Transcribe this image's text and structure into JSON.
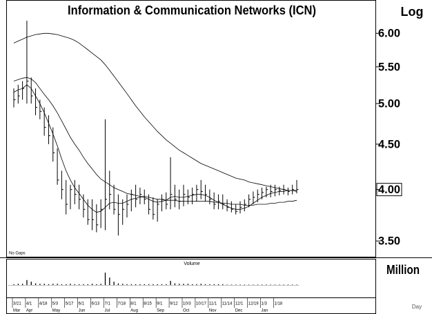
{
  "chart_data": [
    {
      "type": "ohlc",
      "title": "Information & Communication Networks (ICN)",
      "scale": "log",
      "scale_label": "Log",
      "note": "No Gaps",
      "x_label": "Day",
      "color": "#000000",
      "ylim": [
        3.36,
        6.53
      ],
      "yticks": [
        {
          "value": 3.5,
          "label": "3.50"
        },
        {
          "value": 4,
          "label": "4.00"
        },
        {
          "value": 4.5,
          "label": "4.50"
        },
        {
          "value": 5,
          "label": "5.00"
        },
        {
          "value": 5.5,
          "label": "5.50"
        },
        {
          "value": 6,
          "label": "6.00"
        }
      ],
      "categories": [
        "3/21",
        null,
        null,
        "4/1",
        null,
        null,
        "4/18",
        null,
        null,
        "5/3",
        null,
        null,
        "5/17",
        null,
        null,
        "6/1",
        null,
        null,
        "6/13",
        null,
        null,
        "7/1",
        null,
        null,
        "7/18",
        null,
        null,
        "8/1",
        null,
        null,
        "8/15",
        null,
        null,
        "9/1",
        null,
        null,
        "9/12",
        null,
        null,
        "10/3",
        null,
        null,
        "10/17",
        null,
        null,
        "11/1",
        null,
        null,
        "11/14",
        null,
        null,
        "12/1",
        null,
        null,
        "12/19",
        null,
        null,
        "1/3",
        null,
        null,
        "1/18",
        null,
        null,
        null,
        null,
        null
      ],
      "months": [
        "Mar",
        null,
        null,
        "Apr",
        null,
        null,
        null,
        null,
        null,
        "May",
        null,
        null,
        null,
        null,
        null,
        "Jun",
        null,
        null,
        null,
        null,
        null,
        "Jul",
        null,
        null,
        null,
        null,
        null,
        "Aug",
        null,
        null,
        null,
        null,
        null,
        "Sep",
        null,
        null,
        null,
        null,
        null,
        "Oct",
        null,
        null,
        null,
        null,
        null,
        "Nov",
        null,
        null,
        null,
        null,
        null,
        "Dec",
        null,
        null,
        null,
        null,
        null,
        "Jan",
        null,
        null,
        null,
        null,
        null,
        null,
        null,
        null
      ],
      "high": [
        5.2,
        5.25,
        5.3,
        6.2,
        5.35,
        5.2,
        5.05,
        4.95,
        4.85,
        4.7,
        4.45,
        4.2,
        4.1,
        4.05,
        4.1,
        4.05,
        3.95,
        3.9,
        3.9,
        3.85,
        3.9,
        4.8,
        4.2,
        4.05,
        3.95,
        3.9,
        3.95,
        4.0,
        4.05,
        4.02,
        4.0,
        3.95,
        3.92,
        3.9,
        3.95,
        3.97,
        4.35,
        4.05,
        4.0,
        4.05,
        4.0,
        4.02,
        4.05,
        4.1,
        4.05,
        4.0,
        3.97,
        3.95,
        3.95,
        3.9,
        3.88,
        3.85,
        3.88,
        3.9,
        3.95,
        3.98,
        4.0,
        4.02,
        4.03,
        4.05,
        4.05,
        4.03,
        4.05,
        4.02,
        4.05,
        4.1
      ],
      "low": [
        4.95,
        5.0,
        5.05,
        5.0,
        5.0,
        4.85,
        4.8,
        4.6,
        4.5,
        4.3,
        4.05,
        3.9,
        3.75,
        3.8,
        3.85,
        3.8,
        3.72,
        3.65,
        3.6,
        3.58,
        3.62,
        3.6,
        3.8,
        3.75,
        3.55,
        3.65,
        3.72,
        3.78,
        3.82,
        3.85,
        3.85,
        3.75,
        3.7,
        3.68,
        3.78,
        3.8,
        3.8,
        3.82,
        3.8,
        3.83,
        3.85,
        3.85,
        3.88,
        3.9,
        3.88,
        3.85,
        3.8,
        3.8,
        3.8,
        3.78,
        3.77,
        3.75,
        3.76,
        3.78,
        3.82,
        3.85,
        3.87,
        3.9,
        3.92,
        3.92,
        3.93,
        3.94,
        3.95,
        3.94,
        3.95,
        3.96
      ],
      "close": [
        5.05,
        5.1,
        5.2,
        5.3,
        5.1,
        4.95,
        4.9,
        4.7,
        4.6,
        4.4,
        4.1,
        4.0,
        3.85,
        4.0,
        3.95,
        3.9,
        3.8,
        3.7,
        3.7,
        3.65,
        3.8,
        3.9,
        3.95,
        3.8,
        3.75,
        3.8,
        3.85,
        3.95,
        3.9,
        3.95,
        3.9,
        3.8,
        3.75,
        3.85,
        3.9,
        3.85,
        3.95,
        3.9,
        3.88,
        3.95,
        3.92,
        3.95,
        4.0,
        3.98,
        3.95,
        3.9,
        3.85,
        3.88,
        3.85,
        3.82,
        3.8,
        3.78,
        3.82,
        3.85,
        3.9,
        3.92,
        3.95,
        3.97,
        4.0,
        3.98,
        4.0,
        3.99,
        4.0,
        3.98,
        4.0,
        4.0
      ],
      "series": [
        {
          "color": "#000000",
          "values": [
            5.85,
            5.88,
            5.91,
            5.94,
            5.96,
            5.98,
            5.99,
            6.0,
            6.0,
            5.99,
            5.98,
            5.96,
            5.94,
            5.92,
            5.89,
            5.85,
            5.8,
            5.75,
            5.7,
            5.65,
            5.6,
            5.53,
            5.45,
            5.37,
            5.29,
            5.21,
            5.13,
            5.05,
            4.97,
            4.9,
            4.83,
            4.77,
            4.71,
            4.65,
            4.6,
            4.55,
            4.51,
            4.47,
            4.43,
            4.4,
            4.37,
            4.34,
            4.31,
            4.28,
            4.26,
            4.24,
            4.22,
            4.2,
            4.18,
            4.16,
            4.14,
            4.12,
            4.11,
            4.1,
            4.08,
            4.07,
            4.06,
            4.05,
            4.04,
            4.03,
            4.02,
            4.01,
            4.0,
            3.99,
            3.99,
            3.98
          ]
        },
        {
          "color": "#000000",
          "values": [
            5.3,
            5.32,
            5.34,
            5.35,
            5.33,
            5.28,
            5.2,
            5.12,
            5.05,
            4.97,
            4.88,
            4.78,
            4.68,
            4.58,
            4.5,
            4.43,
            4.35,
            4.28,
            4.22,
            4.16,
            4.11,
            4.08,
            4.05,
            4.02,
            4.0,
            3.98,
            3.96,
            3.95,
            3.94,
            3.93,
            3.93,
            3.92,
            3.91,
            3.9,
            3.9,
            3.89,
            3.89,
            3.89,
            3.88,
            3.88,
            3.88,
            3.88,
            3.88,
            3.88,
            3.88,
            3.88,
            3.87,
            3.87,
            3.86,
            3.86,
            3.85,
            3.85,
            3.85,
            3.84,
            3.84,
            3.84,
            3.85,
            3.85,
            3.85,
            3.86,
            3.86,
            3.87,
            3.87,
            3.88,
            3.88,
            3.89
          ]
        },
        {
          "color": "#000000",
          "values": [
            5.15,
            5.18,
            5.2,
            5.25,
            5.2,
            5.1,
            5.0,
            4.88,
            4.75,
            4.62,
            4.48,
            4.33,
            4.2,
            4.1,
            4.02,
            3.96,
            3.9,
            3.84,
            3.8,
            3.77,
            3.78,
            3.82,
            3.86,
            3.87,
            3.86,
            3.86,
            3.88,
            3.9,
            3.91,
            3.92,
            3.92,
            3.9,
            3.88,
            3.87,
            3.88,
            3.89,
            3.92,
            3.93,
            3.92,
            3.92,
            3.93,
            3.94,
            3.95,
            3.95,
            3.94,
            3.92,
            3.89,
            3.87,
            3.85,
            3.83,
            3.81,
            3.8,
            3.8,
            3.81,
            3.83,
            3.86,
            3.89,
            3.92,
            3.94,
            3.96,
            3.97,
            3.98,
            3.98,
            3.99,
            3.99,
            3.99
          ]
        }
      ]
    },
    {
      "type": "bar",
      "title": "Volume",
      "unit_label": "Million",
      "color": "#000000",
      "ylim": [
        0,
        0.5
      ],
      "values": [
        0.02,
        0.03,
        0.03,
        0.12,
        0.08,
        0.04,
        0.03,
        0.03,
        0.02,
        0.03,
        0.03,
        0.02,
        0.02,
        0.03,
        0.02,
        0.02,
        0.02,
        0.02,
        0.03,
        0.02,
        0.03,
        0.3,
        0.18,
        0.08,
        0.04,
        0.03,
        0.02,
        0.02,
        0.02,
        0.02,
        0.02,
        0.02,
        0.02,
        0.02,
        0.02,
        0.02,
        0.1,
        0.04,
        0.03,
        0.03,
        0.03,
        0.02,
        0.02,
        0.03,
        0.02,
        0.02,
        0.02,
        0.02,
        0.02,
        0.01,
        0.01,
        0.01,
        0.01,
        0.01,
        0.01,
        0.01,
        0.01,
        0.01,
        0.01,
        0.01,
        0.01,
        0.01,
        0.01,
        0.01,
        0.01,
        0.01
      ]
    }
  ]
}
